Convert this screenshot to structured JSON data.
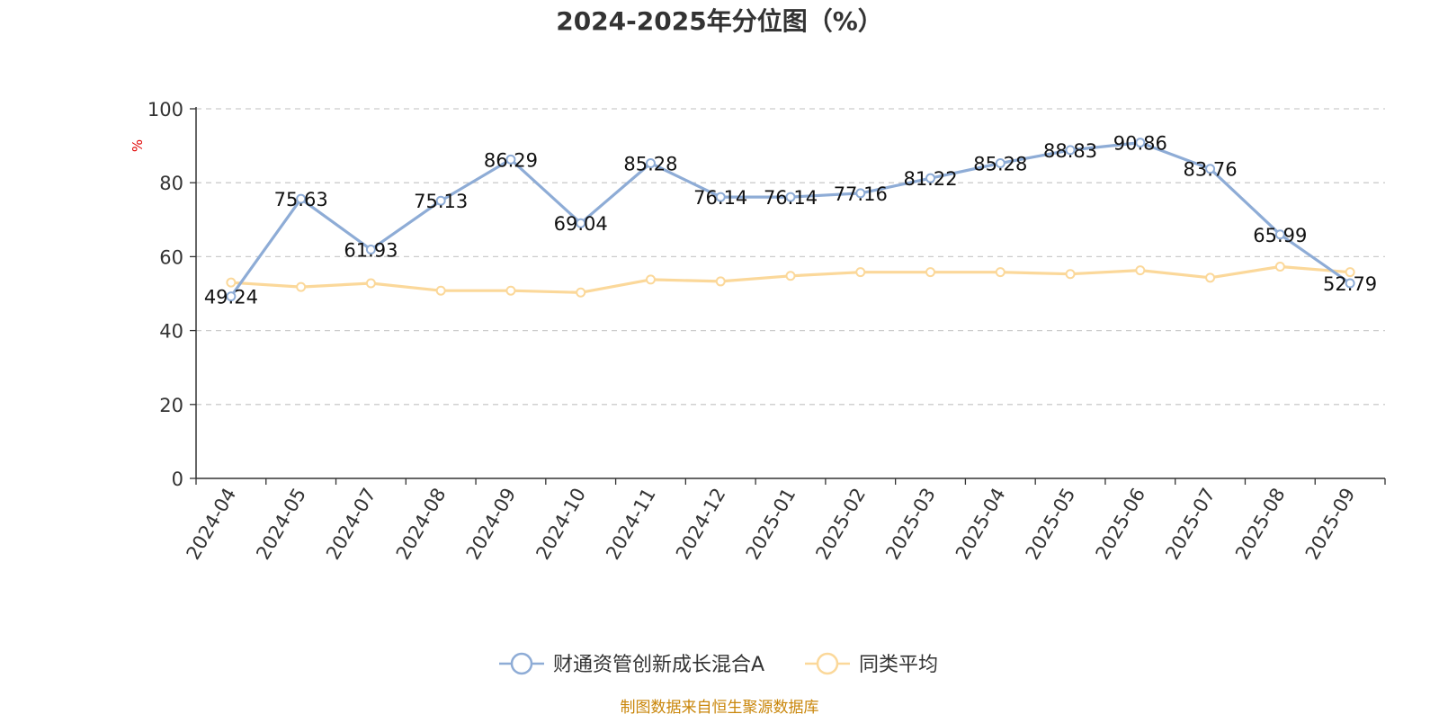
{
  "chart_data": {
    "type": "line",
    "title": "2024-2025年分位图（%）",
    "ylabel": "%",
    "xlabel": "",
    "ylim": [
      0,
      100
    ],
    "yticks": [
      0,
      20,
      40,
      60,
      80,
      100
    ],
    "grid": "horizontal-dashed",
    "legend_position": "bottom",
    "categories": [
      "2024-04",
      "2024-05",
      "2024-07",
      "2024-08",
      "2024-09",
      "2024-10",
      "2024-11",
      "2024-12",
      "2025-01",
      "2025-02",
      "2025-03",
      "2025-04",
      "2025-05",
      "2025-06",
      "2025-07",
      "2025-08",
      "2025-09"
    ],
    "series": [
      {
        "name": "财通资管创新成长混合A",
        "color": "#8eacd6",
        "show_labels": true,
        "values": [
          49.24,
          75.63,
          61.93,
          75.13,
          86.29,
          69.04,
          85.28,
          76.14,
          76.14,
          77.16,
          81.22,
          85.28,
          88.83,
          90.86,
          83.76,
          65.99,
          52.79
        ],
        "labels": [
          "49.24",
          "75.63",
          "61.93",
          "75.13",
          "86.29",
          "69.04",
          "85.28",
          "76.14",
          "76.14",
          "77.16",
          "81.22",
          "85.28",
          "88.83",
          "90.86",
          "83.76",
          "65.99",
          "52.79"
        ]
      },
      {
        "name": "同类平均",
        "color": "#fbd89a",
        "show_labels": false,
        "values": [
          53.0,
          51.8,
          52.8,
          50.8,
          50.8,
          50.3,
          53.8,
          53.3,
          54.8,
          55.8,
          55.8,
          55.8,
          55.3,
          56.3,
          54.3,
          57.3,
          55.8
        ]
      }
    ]
  },
  "source_text": "制图数据来自恒生聚源数据库"
}
